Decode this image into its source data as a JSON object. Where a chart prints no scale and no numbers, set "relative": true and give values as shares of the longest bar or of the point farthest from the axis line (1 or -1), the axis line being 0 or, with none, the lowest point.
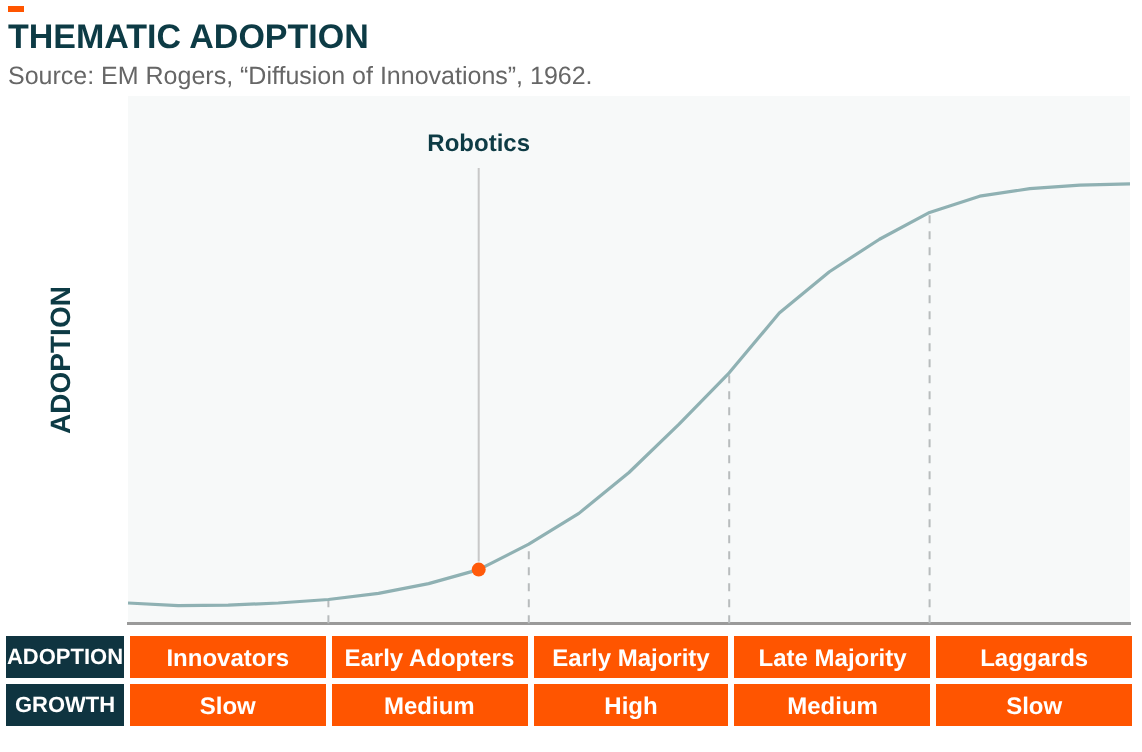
{
  "chart_data": {
    "type": "line",
    "title": "THEMATIC ADOPTION",
    "ylabel": "ADOPTION",
    "relative": true,
    "grid": false,
    "legend": false,
    "marker": "none",
    "line_style": "solid",
    "categories": [
      null,
      null,
      null,
      null,
      null,
      null,
      null,
      null,
      null,
      null,
      null,
      null,
      null,
      null,
      null,
      null,
      null,
      null,
      null,
      null,
      null
    ],
    "annotations": [
      "Source: EM Rogers, “Diffusion of Innovations”, 1962.",
      {
        "text": "Robotics",
        "y": 0.122
      },
      "ADOPTION",
      "Innovators",
      "Early Adopters",
      "Early Majority",
      "Late Majority",
      "Laggards",
      "GROWTH",
      "Slow",
      "Medium",
      "High",
      "Medium",
      "Slow"
    ],
    "series": [
      {
        "color": "#8fb1b3",
        "values": [
          0.046,
          0.04,
          0.041,
          0.046,
          0.054,
          0.068,
          0.09,
          0.122,
          0.18,
          0.25,
          0.343,
          0.453,
          0.57,
          0.706,
          0.8,
          0.874,
          0.935,
          0.972,
          0.989,
          0.997,
          1
        ]
      }
    ]
  }
}
